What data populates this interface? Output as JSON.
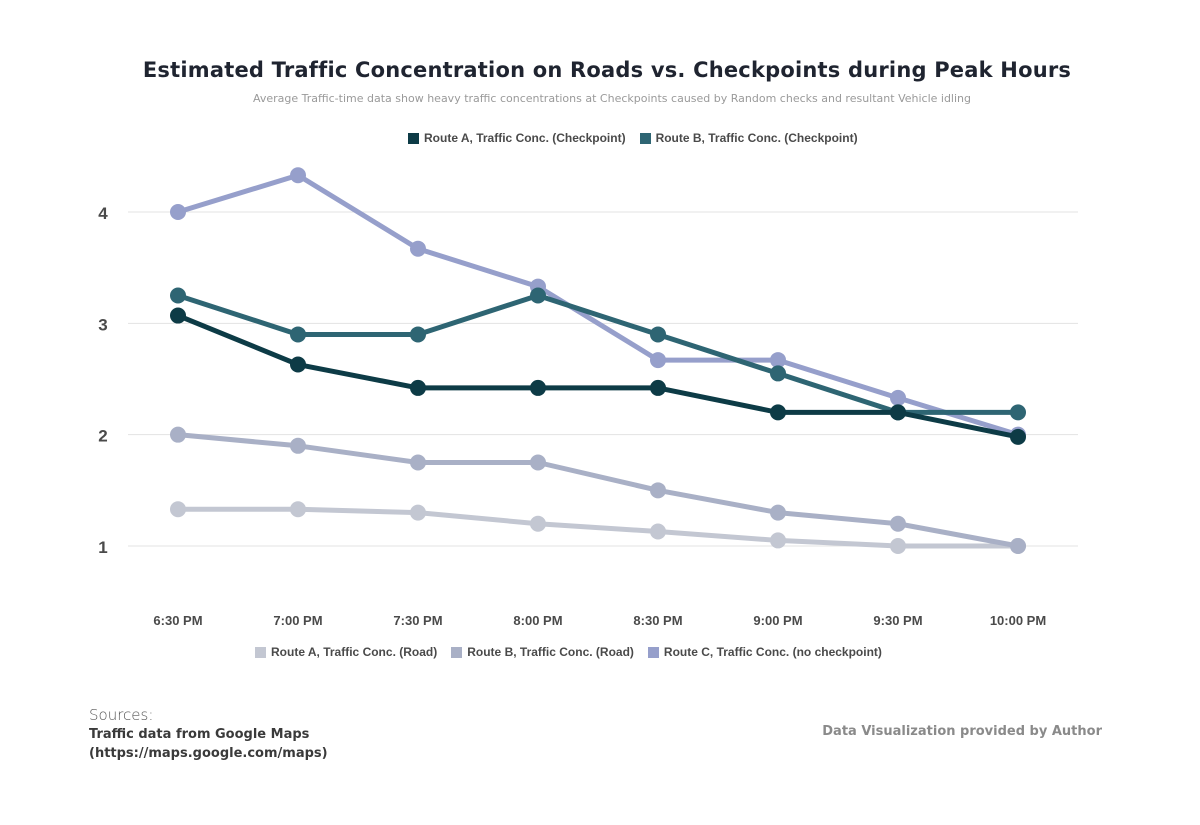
{
  "header": {
    "title": "Estimated Traffic Concentration on Roads vs. Checkpoints during Peak Hours",
    "subtitle": "Average Traffic-time data show heavy traffic concentrations at Checkpoints caused by Random checks and resultant Vehicle idling"
  },
  "legend_top": [
    {
      "label": "Route A, Traffic Conc. (Checkpoint)",
      "color": "#0d3b46"
    },
    {
      "label": "Route B, Traffic Conc. (Checkpoint)",
      "color": "#2e6573"
    }
  ],
  "legend_bottom": [
    {
      "label": "Route A, Traffic Conc. (Road)",
      "color": "#c3c7d2"
    },
    {
      "label": "Route B, Traffic Conc. (Road)",
      "color": "#a9b0c6"
    },
    {
      "label": "Route C, Traffic Conc. (no checkpoint)",
      "color": "#969fcb"
    }
  ],
  "footer": {
    "sources_heading": "Sources:",
    "sources_line1": "Traffic data from Google Maps",
    "sources_line2": "(https://maps.google.com/maps)",
    "credit": "Data Visualization provided by Author"
  },
  "chart_data": {
    "type": "line",
    "title": "Estimated Traffic Concentration on Roads vs. Checkpoints during Peak Hours",
    "subtitle": "Average Traffic-time data show heavy traffic concentrations at Checkpoints caused by Random checks and resultant Vehicle idling",
    "xlabel": "",
    "ylabel": "",
    "categories": [
      "6:30 PM",
      "7:00 PM",
      "7:30 PM",
      "8:00 PM",
      "8:30 PM",
      "9:00 PM",
      "9:30 PM",
      "10:00 PM"
    ],
    "y_ticks": [
      1,
      2,
      3,
      4
    ],
    "ylim": [
      0.6,
      4.5
    ],
    "grid": true,
    "legend_placement": "top and bottom",
    "series": [
      {
        "name": "Route A, Traffic Conc. (Road)",
        "color": "#c3c7d2",
        "values": [
          1.33,
          1.33,
          1.3,
          1.2,
          1.13,
          1.05,
          1.0,
          1.0
        ]
      },
      {
        "name": "Route B, Traffic Conc. (Road)",
        "color": "#a9b0c6",
        "values": [
          2.0,
          1.9,
          1.75,
          1.75,
          1.5,
          1.3,
          1.2,
          1.0
        ]
      },
      {
        "name": "Route C, Traffic Conc. (no checkpoint)",
        "color": "#969fcb",
        "values": [
          4.0,
          4.33,
          3.67,
          3.33,
          2.67,
          2.67,
          2.33,
          2.0
        ]
      },
      {
        "name": "Route B, Traffic Conc. (Checkpoint)",
        "color": "#2e6573",
        "values": [
          3.25,
          2.9,
          2.9,
          3.25,
          2.9,
          2.55,
          2.2,
          2.2
        ]
      },
      {
        "name": "Route A, Traffic Conc. (Checkpoint)",
        "color": "#0d3b46",
        "values": [
          3.07,
          2.63,
          2.42,
          2.42,
          2.42,
          2.2,
          2.2,
          1.98
        ]
      }
    ]
  }
}
